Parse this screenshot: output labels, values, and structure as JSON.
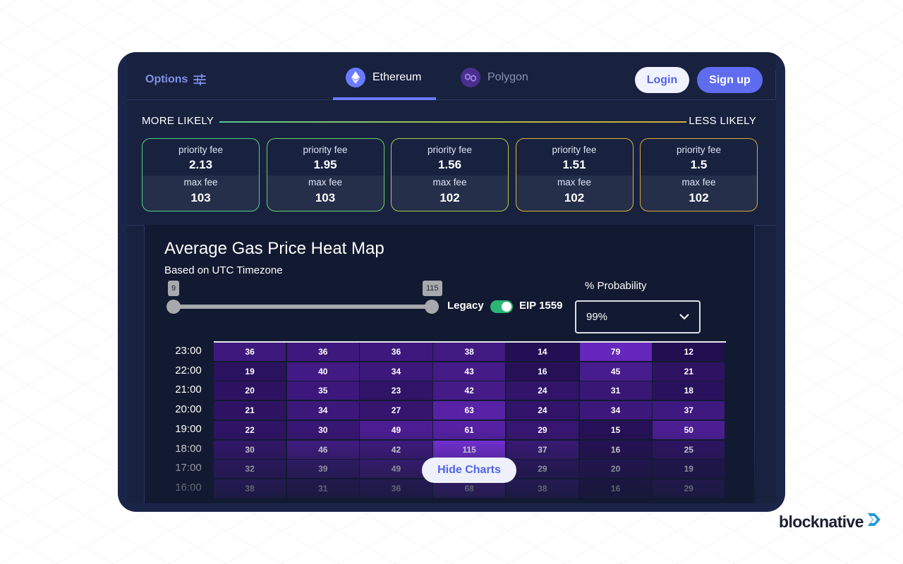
{
  "nav": {
    "options_label": "Options",
    "tabs": [
      {
        "label": "Ethereum",
        "icon": "ethereum-icon",
        "active": true
      },
      {
        "label": "Polygon",
        "icon": "polygon-icon",
        "active": false
      }
    ],
    "login_label": "Login",
    "signup_label": "Sign up"
  },
  "likelihood": {
    "left_label": "MORE LIKELY",
    "right_label": "LESS LIKELY"
  },
  "fee_cards": [
    {
      "priority_label": "priority fee",
      "priority_value": "2.13",
      "max_label": "max fee",
      "max_value": "103",
      "border_color": "#4fd28a"
    },
    {
      "priority_label": "priority fee",
      "priority_value": "1.95",
      "max_label": "max fee",
      "max_value": "103",
      "border_color": "#6ecf6a"
    },
    {
      "priority_label": "priority fee",
      "priority_value": "1.56",
      "max_label": "max fee",
      "max_value": "102",
      "border_color": "#b3c84a"
    },
    {
      "priority_label": "priority fee",
      "priority_value": "1.51",
      "max_label": "max fee",
      "max_value": "102",
      "border_color": "#d8b83a"
    },
    {
      "priority_label": "priority fee",
      "priority_value": "1.5",
      "max_label": "max fee",
      "max_value": "102",
      "border_color": "#d9a83a"
    }
  ],
  "heatmap": {
    "title": "Average Gas Price Heat Map",
    "subtitle": "Based on UTC Timezone",
    "slider_min": "9",
    "slider_max": "115",
    "legacy_label": "Legacy",
    "eip_label": "EIP 1559",
    "probability_label": "% Probability",
    "probability_value": "99%",
    "hide_charts_label": "Hide Charts"
  },
  "chart_data": {
    "type": "heatmap",
    "title": "Average Gas Price Heat Map",
    "y_categories": [
      "23:00",
      "22:00",
      "21:00",
      "20:00",
      "19:00",
      "18:00",
      "17:00",
      "16:00"
    ],
    "values": [
      [
        36,
        36,
        36,
        38,
        14,
        79,
        12
      ],
      [
        19,
        40,
        34,
        43,
        16,
        45,
        21
      ],
      [
        20,
        35,
        23,
        42,
        24,
        31,
        18
      ],
      [
        21,
        34,
        27,
        63,
        24,
        34,
        37
      ],
      [
        22,
        30,
        49,
        61,
        29,
        15,
        50
      ],
      [
        30,
        46,
        42,
        115,
        37,
        16,
        25
      ],
      [
        32,
        39,
        49,
        null,
        29,
        20,
        19
      ],
      [
        38,
        31,
        36,
        68,
        38,
        16,
        29
      ]
    ],
    "color_range": [
      9,
      115
    ]
  },
  "brand": {
    "name": "blocknative"
  }
}
